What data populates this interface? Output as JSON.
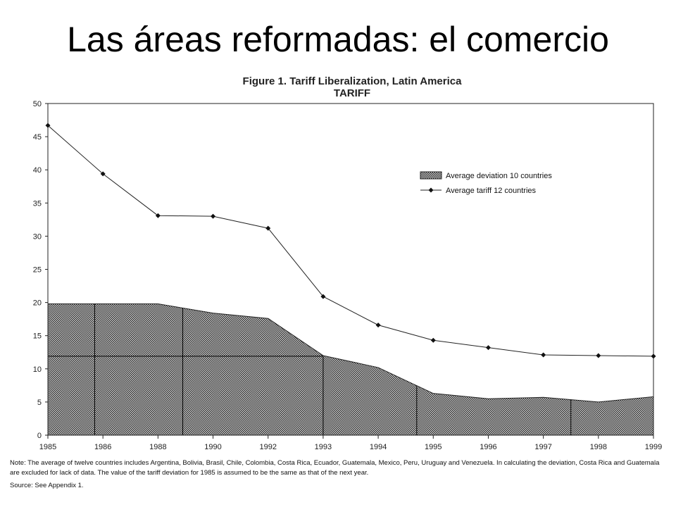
{
  "slide": {
    "title": "Las áreas reformadas: el comercio"
  },
  "note": "Note: The average of twelve countries includes Argentina, Bolivia, Brasil, Chile, Colombia, Costa Rica, Ecuador, Guatemala, Mexico, Peru, Uruguay and Venezuela.  In calculating the deviation,  Costa Rica and Guatemala are excluded for lack of data. The value of the tariff deviation for 1985 is assumed to be the same as that of the next year.",
  "source": "Source: See Appendix 1.",
  "chart_data": {
    "type": "line",
    "title": "Figure 1.  Tariff Liberalization, Latin America",
    "subtitle": "TARIFF",
    "categories": [
      "1985",
      "1986",
      "1988",
      "1990",
      "1992",
      "1993",
      "1994",
      "1995",
      "1996",
      "1997",
      "1998",
      "1999"
    ],
    "series": [
      {
        "name": "Average deviation 10 countries",
        "kind": "area",
        "values": [
          19.8,
          19.8,
          19.8,
          18.4,
          17.6,
          12.0,
          10.2,
          6.3,
          5.5,
          5.7,
          5.0,
          5.8
        ]
      },
      {
        "name": "Average tariff 12 countries",
        "kind": "line",
        "values": [
          46.7,
          39.4,
          33.1,
          33.0,
          31.2,
          20.9,
          16.6,
          14.3,
          13.2,
          12.1,
          12.0,
          11.9
        ]
      }
    ],
    "ylim": [
      0,
      50
    ],
    "yticks": [
      0,
      5,
      10,
      15,
      20,
      25,
      30,
      35,
      40,
      45,
      50
    ],
    "legend_position": "right",
    "colors": {
      "area_fill": "#4a4a4a",
      "line": "#222222"
    }
  }
}
